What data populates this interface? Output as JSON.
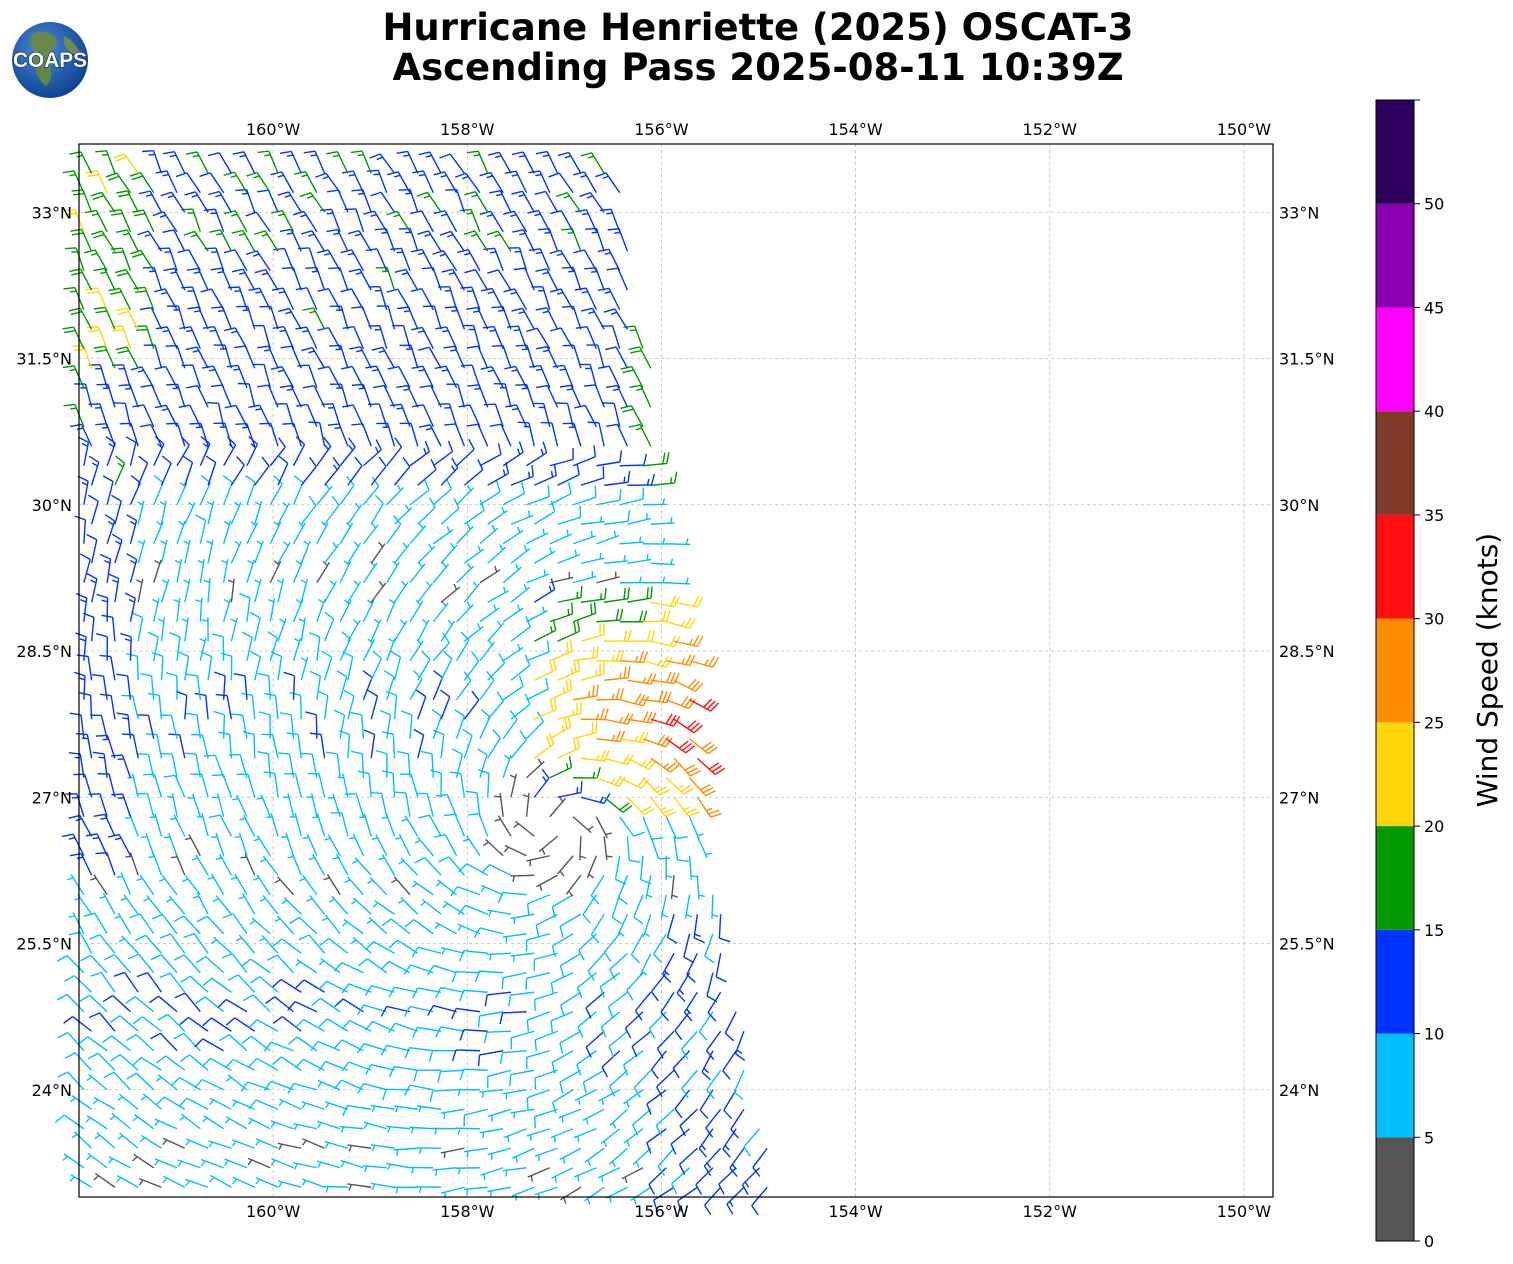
{
  "title": {
    "line1": "Hurricane Henriette (2025) OSCAT-3",
    "line2": "Ascending Pass 2025-08-11 10:39Z"
  },
  "logo": {
    "text": "COAPS",
    "icon": "globe-icon"
  },
  "map": {
    "lon_range": [
      -162,
      -149.7
    ],
    "lat_range": [
      22.9,
      33.7
    ],
    "lon_ticks": [
      {
        "value": -160,
        "label": "160°W"
      },
      {
        "value": -158,
        "label": "158°W"
      },
      {
        "value": -156,
        "label": "156°W"
      },
      {
        "value": -154,
        "label": "154°W"
      },
      {
        "value": -152,
        "label": "152°W"
      },
      {
        "value": -150,
        "label": "150°W"
      }
    ],
    "lat_ticks": [
      {
        "value": 33,
        "label": "33°N"
      },
      {
        "value": 31.5,
        "label": "31.5°N"
      },
      {
        "value": 30,
        "label": "30°N"
      },
      {
        "value": 28.5,
        "label": "28.5°N"
      },
      {
        "value": 27,
        "label": "27°N"
      },
      {
        "value": 25.5,
        "label": "25.5°N"
      },
      {
        "value": 24,
        "label": "24°N"
      }
    ],
    "gridlines": true,
    "center": {
      "lon": -157.1,
      "lat": 26.7
    },
    "swath_right_edge": [
      [
        33.6,
        -156.5
      ],
      [
        31.5,
        -156.1
      ],
      [
        29.5,
        -155.9
      ],
      [
        28.5,
        -155.7
      ],
      [
        27.0,
        -155.6
      ],
      [
        25.5,
        -155.3
      ],
      [
        23.0,
        -154.8
      ]
    ]
  },
  "colorbar": {
    "label": "Wind Speed (knots)",
    "ticks": [
      "0",
      "5",
      "10",
      "15",
      "20",
      "25",
      "30",
      "35",
      "40",
      "45",
      "50"
    ],
    "bins": [
      {
        "min": 0,
        "max": 5,
        "color": "#555555"
      },
      {
        "min": 5,
        "max": 10,
        "color": "#00bfff"
      },
      {
        "min": 10,
        "max": 15,
        "color": "#0033ff"
      },
      {
        "min": 15,
        "max": 20,
        "color": "#009900"
      },
      {
        "min": 20,
        "max": 25,
        "color": "#ffd60a"
      },
      {
        "min": 25,
        "max": 30,
        "color": "#ff8c00"
      },
      {
        "min": 30,
        "max": 35,
        "color": "#ff0f0f"
      },
      {
        "min": 35,
        "max": 40,
        "color": "#7f3a2a"
      },
      {
        "min": 40,
        "max": 45,
        "color": "#ff00ff"
      },
      {
        "min": 45,
        "max": 50,
        "color": "#8800b0"
      },
      {
        "min": 50,
        "max": 55,
        "color": "#2d005e"
      }
    ]
  }
}
